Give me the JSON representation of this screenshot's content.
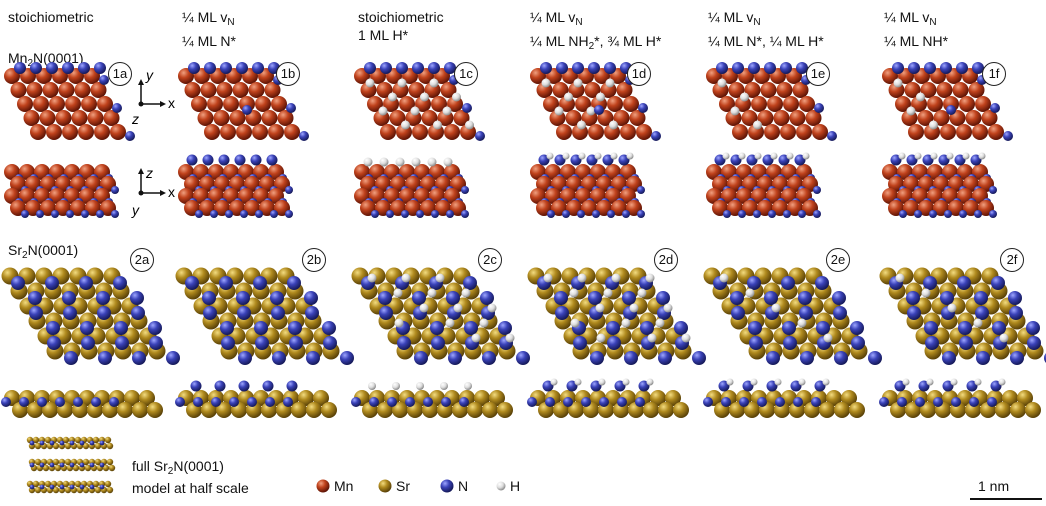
{
  "columns": [
    {
      "line1": "stoichiometric",
      "line2": ""
    },
    {
      "line1": "¼ ML v",
      "line1_sub": "N",
      "line2": "¼ ML N*"
    },
    {
      "line1": "stoichiometric",
      "line2": "1 ML H*"
    },
    {
      "line1": "¼ ML v",
      "line1_sub": "N",
      "line2": "¼ ML NH",
      "line2_sub": "2",
      "line2_tail": "*, ¾ ML H*"
    },
    {
      "line1": "¼ ML v",
      "line1_sub": "N",
      "line2": "¼ ML N*, ¼ ML H*"
    },
    {
      "line1": "¼ ML v",
      "line1_sub": "N",
      "line2": "¼ ML NH*"
    }
  ],
  "row_labels": {
    "mn": {
      "pre": "Mn",
      "sub": "2",
      "post": "N(0001)"
    },
    "sr": {
      "pre": "Sr",
      "sub": "2",
      "post": "N(0001)"
    }
  },
  "tags": [
    "1a",
    "1b",
    "1c",
    "1d",
    "1e",
    "1f",
    "2a",
    "2b",
    "2c",
    "2d",
    "2e",
    "2f"
  ],
  "axes": {
    "top": {
      "x": "x",
      "y": "y",
      "z": "z"
    },
    "side": {
      "x": "x",
      "y": "y",
      "z": "z"
    }
  },
  "half_scale_note": {
    "line1_pre": "full Sr",
    "line1_sub": "2",
    "line1_post": "N(0001)",
    "line2": "model at half scale"
  },
  "legend": [
    {
      "label": "Mn",
      "color": "#b8300f"
    },
    {
      "label": "Sr",
      "color": "#a98318"
    },
    {
      "label": "N",
      "color": "#3a3fb0"
    },
    {
      "label": "H",
      "color": "#e8e8e8"
    }
  ],
  "scale_bar": {
    "label": "1 nm"
  }
}
